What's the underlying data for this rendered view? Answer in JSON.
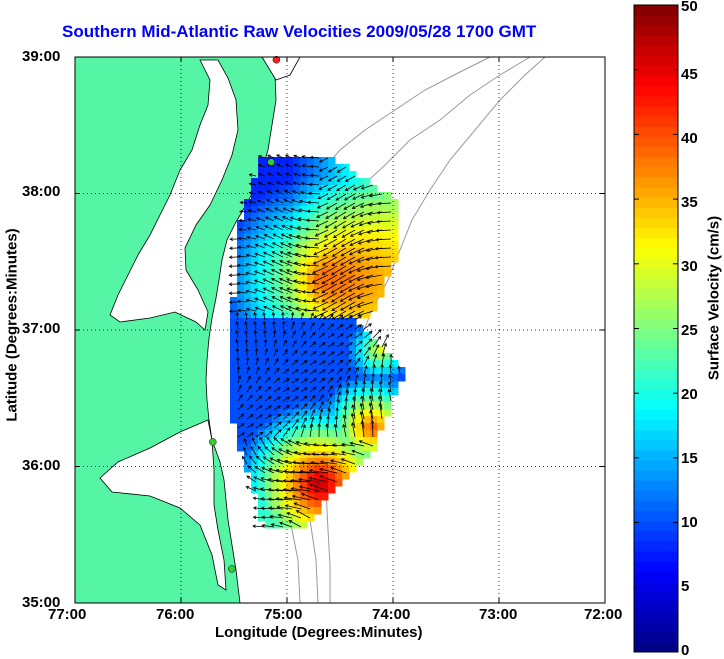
{
  "map": {
    "title": "Southern Mid-Atlantic Raw Velocities 2009/05/28 1700 GMT",
    "xlabel": "Longitude (Degrees:Minutes)",
    "ylabel": "Latitude (Degrees:Minutes)",
    "x_ticks": [
      "77:00",
      "76:00",
      "75:00",
      "74:00",
      "73:00",
      "72:00"
    ],
    "y_ticks": [
      "39:00",
      "38:00",
      "37:00",
      "36:00",
      "35:00"
    ],
    "lon_range": [
      -77,
      -72
    ],
    "lat_range": [
      35,
      39
    ],
    "land_color": "#55f5a5",
    "grid": "dotted"
  },
  "colorbar": {
    "label": "Surface Velocity (cm/s)",
    "ticks": [
      "0",
      "5",
      "10",
      "15",
      "20",
      "25",
      "30",
      "35",
      "40",
      "45",
      "50"
    ],
    "range": [
      0,
      50
    ],
    "colormap": "jet"
  },
  "stations": [
    {
      "name": "north-station",
      "lon": -75.1,
      "lat": 38.98,
      "color": "#ff2020"
    },
    {
      "name": "assateague-station",
      "lon": -75.15,
      "lat": 38.23,
      "color": "#33cc33"
    },
    {
      "name": "cape-henry-station",
      "lon": -75.7,
      "lat": 36.18,
      "color": "#33cc33"
    },
    {
      "name": "hatteras-station",
      "lon": -75.52,
      "lat": 35.25,
      "color": "#33cc33"
    }
  ]
}
